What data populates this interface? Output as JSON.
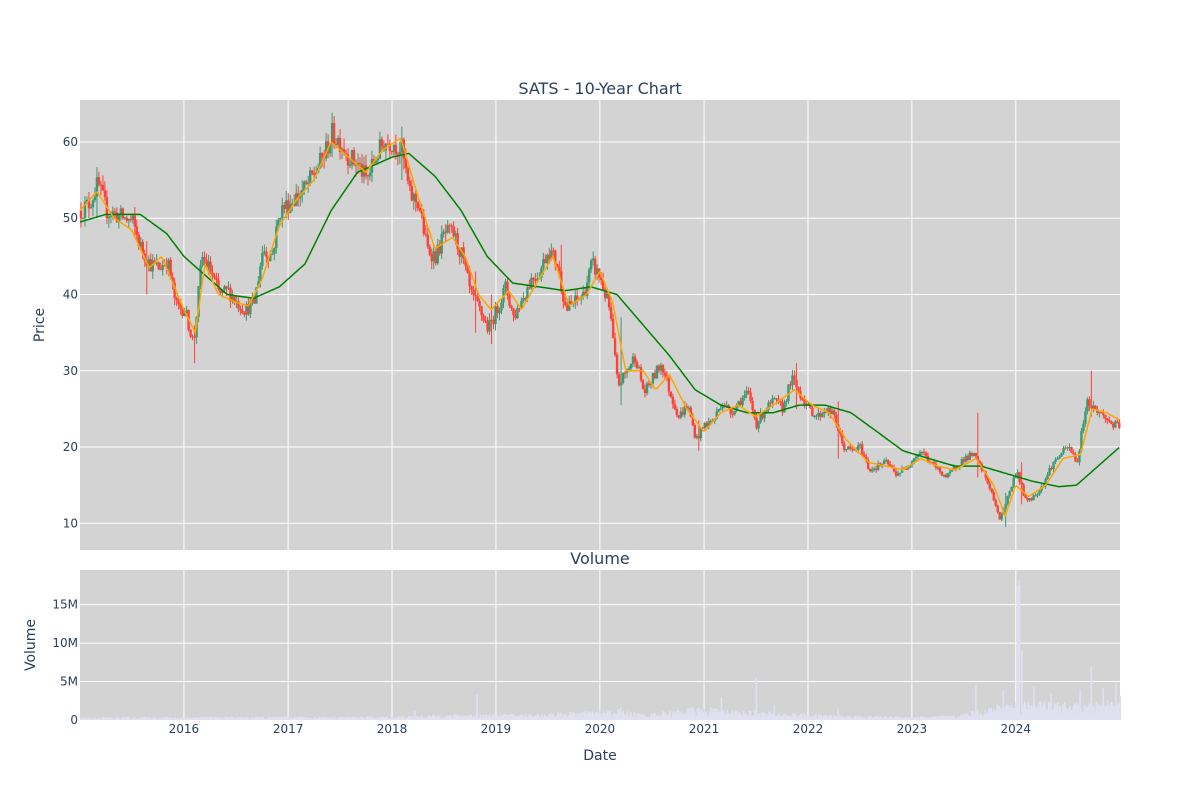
{
  "chart_data": [
    {
      "type": "candlestick",
      "title": "SATS - 10-Year Chart",
      "ylabel": "Price",
      "xlabel": "",
      "xlim": [
        "2015-01-01",
        "2025-01-01"
      ],
      "ylim": [
        6.5,
        65.5
      ],
      "y_ticks": [
        10,
        20,
        30,
        40,
        50,
        60
      ],
      "x_ticks": [
        "2016",
        "2017",
        "2018",
        "2019",
        "2020",
        "2021",
        "2022",
        "2023",
        "2024"
      ],
      "x_tick_dates": [
        "2016-01-01",
        "2017-01-01",
        "2018-01-01",
        "2019-01-01",
        "2020-01-01",
        "2021-01-01",
        "2022-01-01",
        "2023-01-01",
        "2024-01-01"
      ],
      "grid": true,
      "legend": "none",
      "colors": {
        "increasing": "#3d9970",
        "decreasing": "#ff4136",
        "ma_short": "#ffa500",
        "ma_long": "#008000",
        "plot_bg": "#d3d3d3"
      },
      "close_anchors": [
        [
          "2015-01-01",
          51
        ],
        [
          "2015-02-01",
          52
        ],
        [
          "2015-03-01",
          54.5
        ],
        [
          "2015-04-01",
          51
        ],
        [
          "2015-05-01",
          50.5
        ],
        [
          "2015-06-01",
          50
        ],
        [
          "2015-07-01",
          49.5
        ],
        [
          "2015-08-01",
          46
        ],
        [
          "2015-09-01",
          44
        ],
        [
          "2015-10-01",
          43.5
        ],
        [
          "2015-11-01",
          44.5
        ],
        [
          "2015-12-01",
          38.5
        ],
        [
          "2016-01-01",
          38
        ],
        [
          "2016-02-01",
          33.5
        ],
        [
          "2016-03-01",
          45
        ],
        [
          "2016-04-01",
          43
        ],
        [
          "2016-05-01",
          40
        ],
        [
          "2016-06-01",
          40.5
        ],
        [
          "2016-07-01",
          39
        ],
        [
          "2016-08-01",
          38
        ],
        [
          "2016-09-01",
          39
        ],
        [
          "2016-10-01",
          46
        ],
        [
          "2016-11-01",
          45
        ],
        [
          "2016-12-01",
          51
        ],
        [
          "2017-01-01",
          52
        ],
        [
          "2017-02-01",
          53
        ],
        [
          "2017-03-01",
          54
        ],
        [
          "2017-04-01",
          56
        ],
        [
          "2017-05-01",
          58
        ],
        [
          "2017-06-01",
          61
        ],
        [
          "2017-07-01",
          60
        ],
        [
          "2017-08-01",
          58
        ],
        [
          "2017-09-01",
          57
        ],
        [
          "2017-10-01",
          55
        ],
        [
          "2017-11-01",
          58
        ],
        [
          "2017-12-01",
          60
        ],
        [
          "2018-01-01",
          60
        ],
        [
          "2018-02-01",
          59
        ],
        [
          "2018-03-01",
          53
        ],
        [
          "2018-04-01",
          52
        ],
        [
          "2018-05-01",
          46
        ],
        [
          "2018-06-01",
          45
        ],
        [
          "2018-07-01",
          48
        ],
        [
          "2018-08-01",
          48
        ],
        [
          "2018-09-01",
          45
        ],
        [
          "2018-10-01",
          40
        ],
        [
          "2018-11-01",
          38
        ],
        [
          "2018-12-01",
          35.5
        ],
        [
          "2019-01-01",
          38
        ],
        [
          "2019-02-01",
          41
        ],
        [
          "2019-03-01",
          37
        ],
        [
          "2019-04-01",
          39.5
        ],
        [
          "2019-05-01",
          42
        ],
        [
          "2019-06-01",
          43
        ],
        [
          "2019-07-01",
          46
        ],
        [
          "2019-08-01",
          44
        ],
        [
          "2019-09-01",
          38
        ],
        [
          "2019-10-01",
          39
        ],
        [
          "2019-11-01",
          40
        ],
        [
          "2019-12-01",
          44
        ],
        [
          "2020-01-01",
          42
        ],
        [
          "2020-02-01",
          38
        ],
        [
          "2020-03-01",
          28
        ],
        [
          "2020-04-01",
          30
        ],
        [
          "2020-05-01",
          32
        ],
        [
          "2020-06-01",
          27
        ],
        [
          "2020-07-01",
          29
        ],
        [
          "2020-08-01",
          31
        ],
        [
          "2020-09-01",
          27
        ],
        [
          "2020-10-01",
          24
        ],
        [
          "2020-11-01",
          25.5
        ],
        [
          "2020-12-01",
          21
        ],
        [
          "2021-01-01",
          23
        ],
        [
          "2021-02-01",
          23.5
        ],
        [
          "2021-03-01",
          26
        ],
        [
          "2021-04-01",
          24.5
        ],
        [
          "2021-05-01",
          26
        ],
        [
          "2021-06-01",
          27
        ],
        [
          "2021-07-01",
          23
        ],
        [
          "2021-08-01",
          25
        ],
        [
          "2021-09-01",
          26
        ],
        [
          "2021-10-01",
          25
        ],
        [
          "2021-11-01",
          29
        ],
        [
          "2021-12-01",
          27
        ],
        [
          "2022-01-01",
          25
        ],
        [
          "2022-02-01",
          24
        ],
        [
          "2022-03-01",
          25
        ],
        [
          "2022-04-01",
          24
        ],
        [
          "2022-05-01",
          20
        ],
        [
          "2022-06-01",
          19.5
        ],
        [
          "2022-07-01",
          20
        ],
        [
          "2022-08-01",
          17
        ],
        [
          "2022-09-01",
          17.5
        ],
        [
          "2022-10-01",
          18
        ],
        [
          "2022-11-01",
          16.5
        ],
        [
          "2022-12-01",
          17
        ],
        [
          "2023-01-01",
          18.5
        ],
        [
          "2023-02-01",
          19.5
        ],
        [
          "2023-03-01",
          18
        ],
        [
          "2023-04-01",
          17
        ],
        [
          "2023-05-01",
          16
        ],
        [
          "2023-06-01",
          17.5
        ],
        [
          "2023-07-01",
          18.5
        ],
        [
          "2023-08-01",
          19
        ],
        [
          "2023-09-01",
          17
        ],
        [
          "2023-10-01",
          14.5
        ],
        [
          "2023-11-01",
          10.5
        ],
        [
          "2023-12-01",
          13.5
        ],
        [
          "2024-01-01",
          17
        ],
        [
          "2024-02-01",
          13
        ],
        [
          "2024-03-01",
          13.5
        ],
        [
          "2024-04-01",
          15
        ],
        [
          "2024-05-01",
          17.5
        ],
        [
          "2024-06-01",
          19
        ],
        [
          "2024-07-01",
          20
        ],
        [
          "2024-08-01",
          18
        ],
        [
          "2024-09-01",
          26
        ],
        [
          "2024-10-01",
          25
        ],
        [
          "2024-11-01",
          24
        ],
        [
          "2024-12-01",
          23
        ],
        [
          "2024-12-31",
          22.5
        ]
      ],
      "ma_short_anchors": [
        [
          "2015-01-01",
          51
        ],
        [
          "2015-03-01",
          53.5
        ],
        [
          "2015-05-01",
          50
        ],
        [
          "2015-07-01",
          48.5
        ],
        [
          "2015-09-01",
          43.5
        ],
        [
          "2015-10-15",
          45
        ],
        [
          "2016-01-01",
          38
        ],
        [
          "2016-02-10",
          35
        ],
        [
          "2016-03-15",
          44
        ],
        [
          "2016-05-01",
          40
        ],
        [
          "2016-07-01",
          39
        ],
        [
          "2016-08-15",
          38.5
        ],
        [
          "2016-10-01",
          42
        ],
        [
          "2016-12-01",
          49
        ],
        [
          "2017-02-01",
          52.5
        ],
        [
          "2017-04-01",
          55
        ],
        [
          "2017-06-01",
          60
        ],
        [
          "2017-08-01",
          58
        ],
        [
          "2017-10-01",
          56
        ],
        [
          "2017-12-01",
          59
        ],
        [
          "2018-02-01",
          60.5
        ],
        [
          "2018-04-01",
          53
        ],
        [
          "2018-06-01",
          46
        ],
        [
          "2018-08-01",
          47.5
        ],
        [
          "2018-09-15",
          45
        ],
        [
          "2018-11-01",
          40
        ],
        [
          "2018-12-15",
          38
        ],
        [
          "2019-02-15",
          40.5
        ],
        [
          "2019-04-01",
          38
        ],
        [
          "2019-06-01",
          42
        ],
        [
          "2019-07-20",
          45
        ],
        [
          "2019-09-15",
          38.5
        ],
        [
          "2019-11-15",
          40
        ],
        [
          "2020-01-01",
          43
        ],
        [
          "2020-02-15",
          39
        ],
        [
          "2020-04-01",
          30
        ],
        [
          "2020-06-01",
          30
        ],
        [
          "2020-07-15",
          27.5
        ],
        [
          "2020-09-01",
          29.5
        ],
        [
          "2020-11-01",
          25
        ],
        [
          "2021-01-01",
          22
        ],
        [
          "2021-03-01",
          24.5
        ],
        [
          "2021-05-01",
          25.5
        ],
        [
          "2021-07-01",
          24
        ],
        [
          "2021-09-01",
          25.5
        ],
        [
          "2021-11-15",
          27.5
        ],
        [
          "2022-01-15",
          25.5
        ],
        [
          "2022-03-15",
          24.5
        ],
        [
          "2022-05-15",
          21
        ],
        [
          "2022-08-01",
          18
        ],
        [
          "2022-10-01",
          17.5
        ],
        [
          "2022-12-01",
          17
        ],
        [
          "2023-02-01",
          18.5
        ],
        [
          "2023-04-01",
          17.5
        ],
        [
          "2023-06-01",
          17
        ],
        [
          "2023-08-15",
          18.5
        ],
        [
          "2023-10-15",
          15
        ],
        [
          "2023-11-25",
          11
        ],
        [
          "2024-01-01",
          15
        ],
        [
          "2024-02-15",
          13.5
        ],
        [
          "2024-04-15",
          15
        ],
        [
          "2024-06-15",
          18.5
        ],
        [
          "2024-08-15",
          19
        ],
        [
          "2024-09-25",
          25
        ],
        [
          "2024-11-15",
          24.5
        ],
        [
          "2024-12-31",
          23.5
        ]
      ],
      "ma_long_anchors": [
        [
          "2015-01-01",
          49.5
        ],
        [
          "2015-04-01",
          50.5
        ],
        [
          "2015-08-01",
          50.5
        ],
        [
          "2015-11-01",
          48
        ],
        [
          "2016-01-01",
          45
        ],
        [
          "2016-03-01",
          43
        ],
        [
          "2016-06-01",
          40
        ],
        [
          "2016-09-01",
          39.5
        ],
        [
          "2016-12-01",
          41
        ],
        [
          "2017-03-01",
          44
        ],
        [
          "2017-06-01",
          51
        ],
        [
          "2017-09-01",
          56
        ],
        [
          "2018-01-01",
          58
        ],
        [
          "2018-03-01",
          58.5
        ],
        [
          "2018-06-01",
          55.5
        ],
        [
          "2018-09-01",
          51
        ],
        [
          "2018-12-01",
          45
        ],
        [
          "2019-03-01",
          41.5
        ],
        [
          "2019-06-01",
          41
        ],
        [
          "2019-09-01",
          40.5
        ],
        [
          "2019-12-01",
          41
        ],
        [
          "2020-03-01",
          40
        ],
        [
          "2020-06-01",
          36
        ],
        [
          "2020-09-01",
          32
        ],
        [
          "2020-12-01",
          27.5
        ],
        [
          "2021-03-01",
          25.5
        ],
        [
          "2021-06-01",
          24.5
        ],
        [
          "2021-09-01",
          24.5
        ],
        [
          "2021-12-01",
          25.5
        ],
        [
          "2022-03-01",
          25.5
        ],
        [
          "2022-06-01",
          24.5
        ],
        [
          "2022-09-01",
          22
        ],
        [
          "2022-12-01",
          19.5
        ],
        [
          "2023-03-01",
          18.5
        ],
        [
          "2023-06-01",
          17.5
        ],
        [
          "2023-09-01",
          17.5
        ],
        [
          "2023-12-01",
          16.5
        ],
        [
          "2024-03-01",
          15.5
        ],
        [
          "2024-06-01",
          14.8
        ],
        [
          "2024-08-01",
          15
        ],
        [
          "2024-10-01",
          17
        ],
        [
          "2024-12-31",
          20
        ]
      ],
      "spikes": [
        [
          "2015-03-01",
          56,
          50
        ],
        [
          "2015-08-20",
          47,
          40
        ],
        [
          "2016-02-05",
          36,
          31
        ],
        [
          "2017-06-01",
          62.5,
          58
        ],
        [
          "2018-02-01",
          62,
          55
        ],
        [
          "2018-10-15",
          43,
          35
        ],
        [
          "2018-12-10",
          40,
          33.5
        ],
        [
          "2019-08-15",
          46.5,
          41
        ],
        [
          "2020-03-15",
          37,
          25.5
        ],
        [
          "2020-12-10",
          23.5,
          19.5
        ],
        [
          "2021-11-15",
          31,
          25
        ],
        [
          "2022-04-15",
          26,
          18.5
        ],
        [
          "2023-08-15",
          24.5,
          16
        ],
        [
          "2023-11-20",
          14,
          9.5
        ],
        [
          "2024-01-15",
          18,
          12.5
        ],
        [
          "2024-09-20",
          30,
          24
        ]
      ]
    },
    {
      "type": "bar",
      "title": "Volume",
      "ylabel": "Volume",
      "xlabel": "Date",
      "xlim": [
        "2015-01-01",
        "2025-01-01"
      ],
      "ylim": [
        0,
        19500000
      ],
      "y_ticks": [
        0,
        5000000,
        10000000,
        15000000
      ],
      "y_tick_labels": [
        "0",
        "5M",
        "10M",
        "15M"
      ],
      "x_ticks": [
        "2016",
        "2017",
        "2018",
        "2019",
        "2020",
        "2021",
        "2022",
        "2023",
        "2024"
      ],
      "grid": true,
      "legend": "none",
      "colors": {
        "bar": "#e0e0f0",
        "plot_bg": "#d3d3d3"
      },
      "base_level_anchors": [
        [
          "2015-01-01",
          250000
        ],
        [
          "2017-01-01",
          300000
        ],
        [
          "2018-01-01",
          300000
        ],
        [
          "2018-06-01",
          450000
        ],
        [
          "2019-06-01",
          550000
        ],
        [
          "2020-03-01",
          900000
        ],
        [
          "2020-06-01",
          500000
        ],
        [
          "2020-12-01",
          1100000
        ],
        [
          "2021-06-01",
          800000
        ],
        [
          "2022-01-01",
          500000
        ],
        [
          "2022-06-01",
          400000
        ],
        [
          "2023-01-01",
          300000
        ],
        [
          "2023-06-01",
          400000
        ],
        [
          "2023-12-01",
          1500000
        ],
        [
          "2024-03-01",
          1700000
        ],
        [
          "2024-09-01",
          1300000
        ],
        [
          "2024-12-31",
          2000000
        ]
      ],
      "spikes": [
        [
          "2018-03-20",
          1200000
        ],
        [
          "2018-10-25",
          3300000
        ],
        [
          "2020-03-10",
          1600000
        ],
        [
          "2021-03-01",
          3000000
        ],
        [
          "2021-07-01",
          5500000
        ],
        [
          "2021-09-01",
          2000000
        ],
        [
          "2022-04-15",
          1500000
        ],
        [
          "2023-08-10",
          4500000
        ],
        [
          "2023-11-15",
          3800000
        ],
        [
          "2024-01-05",
          17500000
        ],
        [
          "2024-01-12",
          18200000
        ],
        [
          "2024-01-20",
          9000000
        ],
        [
          "2024-03-01",
          4300000
        ],
        [
          "2024-05-01",
          3500000
        ],
        [
          "2024-08-10",
          4000000
        ],
        [
          "2024-09-20",
          7000000
        ],
        [
          "2024-11-01",
          4200000
        ],
        [
          "2024-12-15",
          5000000
        ]
      ]
    }
  ]
}
